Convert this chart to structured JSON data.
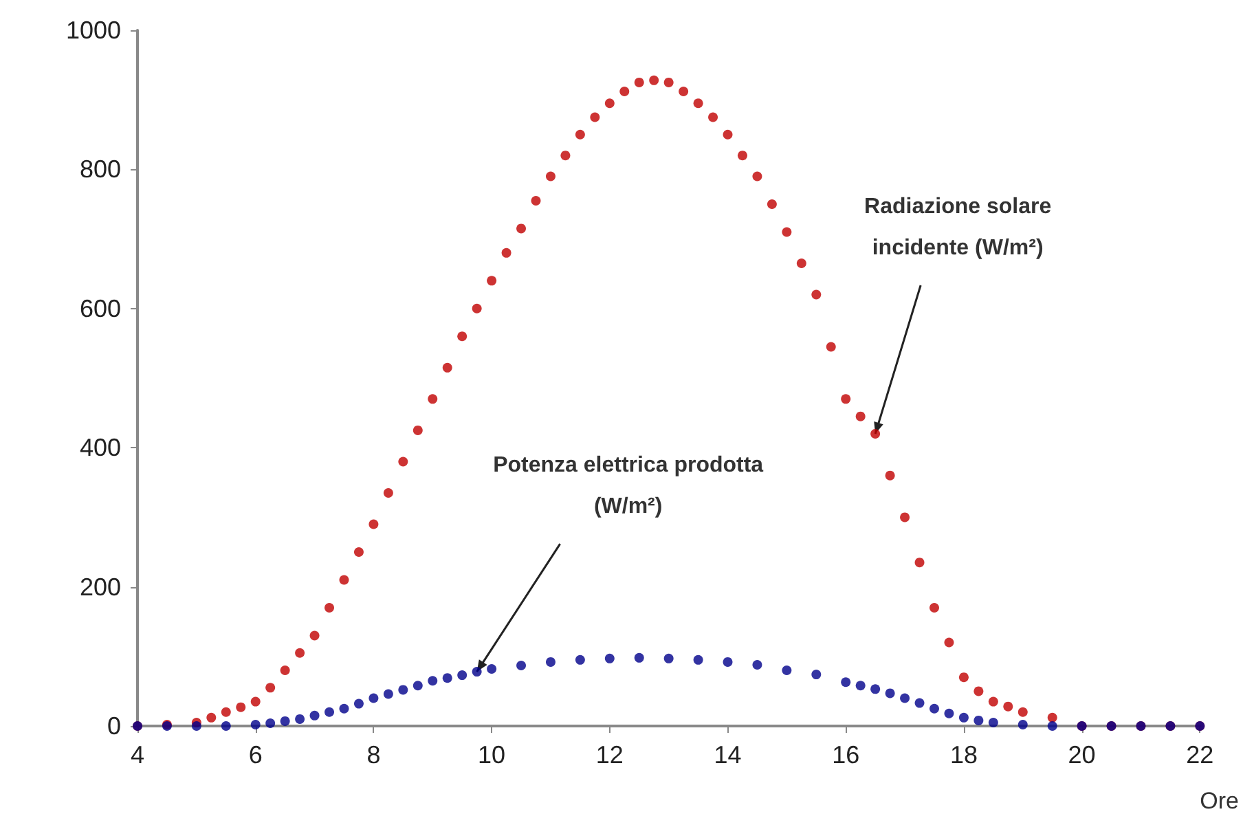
{
  "chart_data": {
    "type": "scatter",
    "xlabel": "Ore",
    "marker": "circle",
    "grid": false,
    "xlim": [
      4,
      22
    ],
    "xticks": [
      4,
      6,
      8,
      10,
      12,
      14,
      16,
      18,
      20,
      22
    ],
    "ylim": [
      0,
      1000
    ],
    "yticks": [
      0,
      200,
      400,
      600,
      800,
      1000
    ],
    "series": [
      {
        "color": "#c00000",
        "x": [
          4,
          4.5,
          5,
          5.25,
          5.5,
          5.75,
          6,
          6.25,
          6.5,
          6.75,
          7,
          7.25,
          7.5,
          7.75,
          8,
          8.25,
          8.5,
          8.75,
          9,
          9.25,
          9.5,
          9.75,
          10,
          10.25,
          10.5,
          10.75,
          11,
          11.25,
          11.5,
          11.75,
          12,
          12.25,
          12.5,
          12.75,
          13,
          13.25,
          13.5,
          13.75,
          14,
          14.25,
          14.5,
          14.75,
          15,
          15.25,
          15.5,
          15.75,
          16,
          16.25,
          16.5,
          16.75,
          17,
          17.25,
          17.5,
          17.75,
          18,
          18.25,
          18.5,
          18.75,
          19,
          19.5,
          20,
          20.5,
          21,
          21.5,
          22
        ],
        "values": [
          0,
          2,
          5,
          12,
          20,
          27,
          35,
          55,
          80,
          105,
          130,
          170,
          210,
          250,
          290,
          335,
          380,
          425,
          470,
          515,
          560,
          600,
          640,
          680,
          715,
          755,
          790,
          820,
          850,
          875,
          895,
          912,
          925,
          928,
          925,
          912,
          895,
          875,
          850,
          820,
          790,
          750,
          710,
          665,
          620,
          545,
          470,
          445,
          420,
          360,
          300,
          235,
          170,
          120,
          70,
          50,
          35,
          28,
          20,
          12,
          0,
          0,
          0,
          0,
          0
        ]
      },
      {
        "color": "#00008b",
        "x": [
          4,
          4.5,
          5,
          5.5,
          6,
          6.25,
          6.5,
          6.75,
          7,
          7.25,
          7.5,
          7.75,
          8,
          8.25,
          8.5,
          8.75,
          9,
          9.25,
          9.5,
          9.75,
          10,
          10.5,
          11,
          11.5,
          12,
          12.5,
          13,
          13.5,
          14,
          14.5,
          15,
          15.5,
          16,
          16.25,
          16.5,
          16.75,
          17,
          17.25,
          17.5,
          17.75,
          18,
          18.25,
          18.5,
          19,
          19.5,
          20,
          20.5,
          21,
          21.5,
          22
        ],
        "values": [
          0,
          0,
          0,
          0,
          2,
          4,
          7,
          10,
          15,
          20,
          25,
          32,
          40,
          46,
          52,
          58,
          65,
          69,
          73,
          78,
          82,
          87,
          92,
          95,
          97,
          98,
          97,
          95,
          92,
          88,
          80,
          74,
          63,
          58,
          53,
          47,
          40,
          33,
          25,
          18,
          12,
          8,
          5,
          2,
          0,
          0,
          0,
          0,
          0,
          0
        ]
      }
    ],
    "annotations": [
      {
        "text": "Radiazione solare\nincidente (W/m²)",
        "x": 16.5,
        "y": 420
      },
      {
        "text": "Potenza elettrica prodotta\n(W/m²)",
        "x": 9.75,
        "y": 78
      }
    ]
  }
}
